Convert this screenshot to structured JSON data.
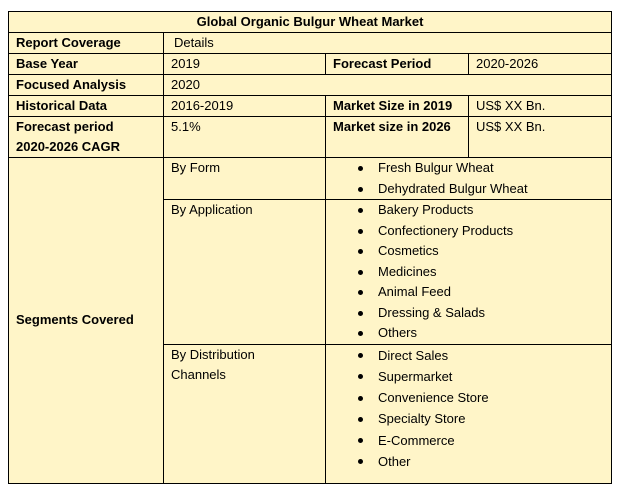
{
  "title": "Global Organic Bulgur Wheat Market",
  "report_coverage": {
    "label": "Report Coverage",
    "value": "Details"
  },
  "base_year": {
    "label": "Base Year",
    "value": "2019"
  },
  "forecast_period": {
    "label": "Forecast Period",
    "value": "2020-2026"
  },
  "focused_analysis": {
    "label": "Focused Analysis",
    "value": "2020"
  },
  "historical_data": {
    "label": "Historical Data",
    "value": "2016-2019"
  },
  "market_size_2019": {
    "label": "Market Size in 2019",
    "value": "US$ XX Bn."
  },
  "cagr": {
    "label_lines": [
      "Forecast period",
      "2020-2026 CAGR"
    ],
    "value": "5.1%"
  },
  "market_size_2026": {
    "label": "Market size in 2026",
    "value": "US$ XX Bn."
  },
  "segments": {
    "label": "Segments Covered",
    "groups": [
      {
        "name_lines": [
          "By Form"
        ],
        "items": [
          "Fresh Bulgur Wheat",
          "Dehydrated Bulgur Wheat"
        ]
      },
      {
        "name_lines": [
          "By Application"
        ],
        "items": [
          "Bakery Products",
          "Confectionery Products",
          "Cosmetics",
          "Medicines",
          "Animal Feed",
          "Dressing & Salads",
          "Others"
        ]
      },
      {
        "name_lines": [
          "By Distribution",
          "Channels"
        ],
        "items": [
          "Direct Sales",
          "Supermarket",
          "Convenience Store",
          "Specialty Store",
          "E-Commerce",
          "Other"
        ]
      }
    ]
  }
}
